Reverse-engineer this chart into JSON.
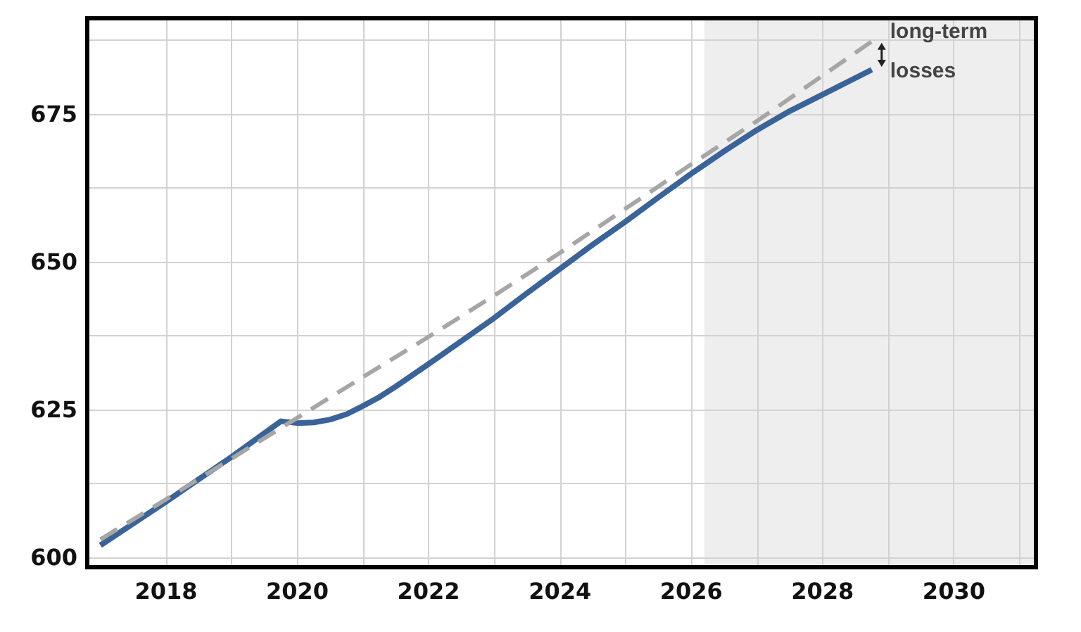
{
  "chart_data": {
    "type": "line",
    "series": [
      {
        "color": "#3a6499",
        "line_style": "solid",
        "x": [
          2017,
          2018,
          2019,
          2019.75,
          2020,
          2020.25,
          2020.5,
          2020.75,
          2021,
          2021.25,
          2021.5,
          2021.75,
          2022,
          2022.5,
          2023,
          2023.5,
          2024,
          2024.5,
          2025,
          2025.5,
          2026,
          2026.5,
          2027,
          2027.5,
          2028,
          2028.75
        ],
        "values": [
          602.0,
          609.4,
          617.0,
          623.0,
          622.7,
          622.8,
          623.3,
          624.2,
          625.6,
          627.1,
          628.9,
          630.8,
          632.7,
          636.6,
          640.5,
          644.7,
          648.8,
          652.9,
          656.8,
          660.9,
          664.9,
          668.7,
          672.3,
          675.5,
          678.3,
          682.5
        ]
      },
      {
        "color": "#a6a6a6",
        "line_style": "dashed",
        "x": [
          2017,
          2018,
          2019,
          2020,
          2021,
          2022,
          2023,
          2024,
          2025,
          2026,
          2027,
          2028,
          2028.75
        ],
        "values": [
          603.0,
          609.8,
          616.7,
          623.6,
          630.5,
          637.3,
          644.3,
          651.5,
          659.0,
          666.5,
          673.8,
          681.5,
          687.3
        ]
      }
    ],
    "xlim": [
      2016.8,
      2031.25
    ],
    "xticks": [
      2018,
      {
        "value": 2019,
        "label": null
      },
      2020,
      {
        "value": 2021,
        "label": null
      },
      2022,
      {
        "value": 2023,
        "label": null
      },
      2024,
      {
        "value": 2025,
        "label": null
      },
      2026,
      {
        "value": 2027,
        "label": null
      },
      2028,
      {
        "value": 2029,
        "label": null
      },
      2030,
      {
        "value": 2031,
        "label": null
      }
    ],
    "ylim": [
      598.3,
      691.2
    ],
    "yticks": [
      600,
      {
        "value": 612.5,
        "label": null
      },
      625,
      {
        "value": 637.5,
        "label": null
      },
      650,
      {
        "value": 662.5,
        "label": null
      },
      675,
      {
        "value": 687.5,
        "label": null
      }
    ],
    "bands": [
      {
        "axis": "x",
        "from": 2026.2,
        "to": 2031.25,
        "color": "#eeeeee"
      }
    ],
    "annotations": [
      "long-term\nlosses"
    ],
    "grid": true,
    "marker": "none"
  }
}
